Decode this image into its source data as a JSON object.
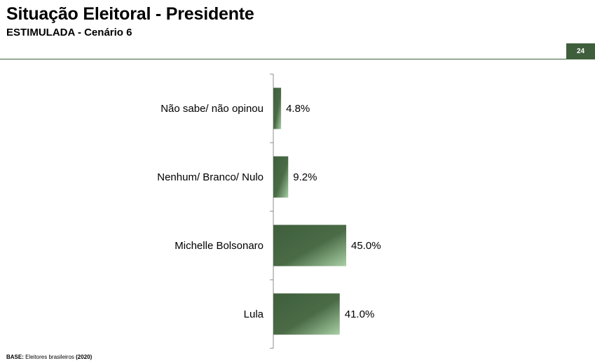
{
  "header": {
    "title": "Situação Eleitoral - Presidente",
    "subtitle": "ESTIMULADA - Cenário 6",
    "page_number": "24"
  },
  "footer": {
    "base_label": "BASE:",
    "base_text": " Eleitores brasileiros ",
    "base_year": "(2020)"
  },
  "colors": {
    "accent": "#3f5f3c",
    "bar_dark": "#3f5f3c",
    "bar_light": "#a8cfa5"
  },
  "chart_data": {
    "type": "bar",
    "orientation": "horizontal",
    "categories": [
      "Não sabe/ não opinou",
      "Nenhum/ Branco/ Nulo",
      "Michelle Bolsonaro",
      "Lula"
    ],
    "values": [
      4.8,
      9.2,
      45.0,
      41.0
    ],
    "labels": [
      "4.8%",
      "9.2%",
      "45.0%",
      "41.0%"
    ],
    "unit": "%",
    "title": "",
    "xlabel": "",
    "ylabel": "",
    "xlim": [
      0,
      45.0
    ],
    "grid": false,
    "legend": "none"
  }
}
